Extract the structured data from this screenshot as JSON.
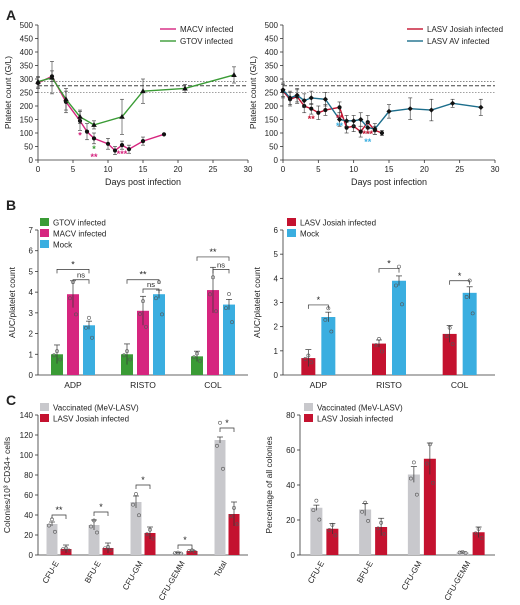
{
  "panel_letters": [
    "A",
    "B",
    "C"
  ],
  "colors": {
    "macv": "#d6257f",
    "gtov": "#3a9b35",
    "lasv_josiah": "#c4122f",
    "lasv_av": "#1c6e8c",
    "mock": "#3aaee0",
    "vaccinated": "#c8c8cc",
    "sig_red": "#d6257f",
    "sig_blue": "#3aaee0"
  },
  "chart_data": [
    {
      "id": "A1",
      "type": "line",
      "xlabel": "Days post infection",
      "ylabel": "Platelet count (G/L)",
      "xlim": [
        0,
        30
      ],
      "ylim": [
        0,
        500
      ],
      "xticks": [
        0,
        5,
        10,
        15,
        20,
        25,
        30
      ],
      "yticks": [
        0,
        50,
        100,
        150,
        200,
        250,
        300,
        350,
        400,
        450,
        500
      ],
      "reference_lines": [
        250,
        275,
        290
      ],
      "legend": "top-right",
      "series": [
        {
          "name": "MACV infected",
          "color": "#d6257f",
          "marker": "circle",
          "x": [
            0,
            2,
            4,
            6,
            7,
            8,
            10,
            11,
            12,
            13,
            15,
            18
          ],
          "y": [
            285,
            310,
            215,
            145,
            105,
            80,
            60,
            35,
            55,
            40,
            70,
            95
          ],
          "err": [
            20,
            20,
            40,
            35,
            30,
            20,
            20,
            15,
            15,
            15,
            15,
            0
          ]
        },
        {
          "name": "GTOV infected",
          "color": "#3a9b35",
          "marker": "triangle",
          "x": [
            0,
            2,
            4,
            6,
            8,
            12,
            15,
            21,
            28
          ],
          "y": [
            290,
            305,
            225,
            160,
            130,
            160,
            255,
            265,
            315
          ],
          "err": [
            20,
            60,
            40,
            25,
            15,
            65,
            45,
            15,
            30
          ]
        }
      ],
      "annotations": [
        {
          "x": 6,
          "text": "*",
          "color": "#d6257f"
        },
        {
          "x": 8,
          "text": "*",
          "color": "#3a9b35"
        },
        {
          "x": 8,
          "text": "**",
          "color": "#d6257f"
        },
        {
          "x": 12,
          "text": "***",
          "color": "#d6257f"
        }
      ]
    },
    {
      "id": "A2",
      "type": "line",
      "xlabel": "Days post infection",
      "ylabel": "Platelet count (G/L)",
      "xlim": [
        0,
        30
      ],
      "ylim": [
        0,
        500
      ],
      "xticks": [
        0,
        5,
        10,
        15,
        20,
        25,
        30
      ],
      "yticks": [
        0,
        50,
        100,
        150,
        200,
        250,
        300,
        350,
        400,
        450,
        500
      ],
      "reference_lines": [
        250,
        275,
        290
      ],
      "legend": "top-right",
      "series": [
        {
          "name": "LASV Josiah infected",
          "color": "#c4122f",
          "marker": "circle",
          "x": [
            0,
            1,
            2,
            3,
            4,
            5,
            6,
            8,
            9,
            10,
            11,
            12,
            13,
            14
          ],
          "y": [
            255,
            225,
            235,
            200,
            190,
            175,
            185,
            195,
            120,
            125,
            105,
            140,
            110,
            100
          ],
          "err": [
            25,
            25,
            25,
            25,
            20,
            25,
            20,
            20,
            20,
            20,
            20,
            25,
            15,
            10
          ]
        },
        {
          "name": "LASV AV infected",
          "color": "#1c6e8c",
          "marker": "diamond",
          "x": [
            0,
            1,
            2,
            3,
            4,
            6,
            8,
            9,
            10,
            11,
            12,
            13,
            15,
            18,
            21,
            24,
            28
          ],
          "y": [
            260,
            230,
            240,
            220,
            230,
            225,
            150,
            145,
            145,
            150,
            120,
            115,
            180,
            190,
            185,
            210,
            195
          ],
          "err": [
            25,
            25,
            25,
            25,
            25,
            25,
            25,
            20,
            20,
            25,
            20,
            20,
            25,
            40,
            40,
            15,
            30
          ]
        }
      ],
      "annotations": [
        {
          "x": 4,
          "text": "**",
          "color": "#c4122f"
        },
        {
          "x": 8,
          "text": "**",
          "color": "#c4122f"
        },
        {
          "x": 8,
          "text": "**",
          "color": "#3aaee0"
        },
        {
          "x": 12,
          "text": "***",
          "color": "#c4122f"
        },
        {
          "x": 12,
          "text": "**",
          "color": "#3aaee0"
        }
      ]
    },
    {
      "id": "B1",
      "type": "bar",
      "ylabel": "AUC/platelet count",
      "ylim": [
        0,
        7
      ],
      "yticks": [
        0,
        1,
        2,
        3,
        4,
        5,
        6,
        7
      ],
      "categories": [
        "ADP",
        "RISTO",
        "COL"
      ],
      "legend": "top-left",
      "series": [
        {
          "name": "GTOV infected",
          "color": "#3a9b35",
          "values": [
            1.0,
            1.0,
            0.9
          ],
          "err": [
            0.45,
            0.5,
            0.25
          ]
        },
        {
          "name": "MACV infected",
          "color": "#d6257f",
          "values": [
            3.9,
            3.1,
            4.1
          ],
          "err": [
            0.65,
            0.7,
            1.1
          ]
        },
        {
          "name": "Mock",
          "color": "#3aaee0",
          "values": [
            2.4,
            3.9,
            3.4
          ],
          "err": [
            0.2,
            0.2,
            0.25
          ]
        }
      ],
      "significance": [
        {
          "cat": 0,
          "from": 0,
          "to": 2,
          "y": 5.1,
          "text": "*"
        },
        {
          "cat": 0,
          "from": 1,
          "to": 2,
          "y": 4.6,
          "text": "ns"
        },
        {
          "cat": 1,
          "from": 0,
          "to": 2,
          "y": 4.6,
          "text": "**"
        },
        {
          "cat": 1,
          "from": 1,
          "to": 2,
          "y": 4.15,
          "text": "ns"
        },
        {
          "cat": 2,
          "from": 0,
          "to": 2,
          "y": 5.7,
          "text": "**"
        },
        {
          "cat": 2,
          "from": 1,
          "to": 2,
          "y": 5.1,
          "text": "ns"
        }
      ]
    },
    {
      "id": "B2",
      "type": "bar",
      "ylabel": "AUC/platelet count",
      "ylim": [
        0,
        6
      ],
      "yticks": [
        0,
        1,
        2,
        3,
        4,
        5,
        6
      ],
      "categories": [
        "ADP",
        "RISTO",
        "COL"
      ],
      "legend": "top-left",
      "series": [
        {
          "name": "LASV Josiah infected",
          "color": "#c4122f",
          "values": [
            0.7,
            1.3,
            1.7
          ],
          "err": [
            0.35,
            0.15,
            0.35
          ]
        },
        {
          "name": "Mock",
          "color": "#3aaee0",
          "values": [
            2.4,
            3.9,
            3.4
          ],
          "err": [
            0.2,
            0.2,
            0.25
          ]
        }
      ],
      "significance": [
        {
          "cat": 0,
          "from": 0,
          "to": 1,
          "y": 2.9,
          "text": "*"
        },
        {
          "cat": 1,
          "from": 0,
          "to": 1,
          "y": 4.4,
          "text": "*"
        },
        {
          "cat": 2,
          "from": 0,
          "to": 1,
          "y": 3.9,
          "text": "*"
        }
      ]
    },
    {
      "id": "C1",
      "type": "bar",
      "ylabel": "Colonies/10³ CD34+ cells",
      "ylim": [
        0,
        140
      ],
      "yticks": [
        0,
        20,
        40,
        60,
        80,
        100,
        120,
        140
      ],
      "categories": [
        "CFU-E",
        "BFU-E",
        "CFU-GM",
        "CFU-GEMM",
        "Total"
      ],
      "legend": "top-left",
      "series": [
        {
          "name": "Vaccinated (MeV-LASV)",
          "color": "#c8c8cc",
          "values": [
            31,
            30,
            53,
            2,
            115
          ],
          "err": [
            2,
            5,
            6,
            0.5,
            3
          ]
        },
        {
          "name": "LASV Josiah infected",
          "color": "#c4122f",
          "values": [
            6,
            7,
            22,
            4,
            41
          ],
          "err": [
            4,
            5,
            6,
            1,
            12
          ]
        }
      ],
      "significance": [
        {
          "cat": 0,
          "from": 0,
          "to": 1,
          "y": 40,
          "text": "**"
        },
        {
          "cat": 1,
          "from": 0,
          "to": 1,
          "y": 43,
          "text": "*"
        },
        {
          "cat": 2,
          "from": 0,
          "to": 1,
          "y": 70,
          "text": "*"
        },
        {
          "cat": 3,
          "from": 0,
          "to": 1,
          "y": 10,
          "text": "*"
        },
        {
          "cat": 4,
          "from": 0,
          "to": 1,
          "y": 127,
          "text": "*"
        }
      ]
    },
    {
      "id": "C2",
      "type": "bar",
      "ylabel": "Percentage of all colonies",
      "ylim": [
        0,
        80
      ],
      "yticks": [
        0,
        20,
        40,
        60,
        80
      ],
      "categories": [
        "CFU-E",
        "BFU-E",
        "CFU-GM",
        "CFU-GEMM"
      ],
      "legend": "top-left",
      "series": [
        {
          "name": "Vaccinated (MeV-LASV)",
          "color": "#c8c8cc",
          "values": [
            27,
            26,
            46,
            1.5
          ],
          "err": [
            1.5,
            3.5,
            4.5,
            0.3
          ]
        },
        {
          "name": "LASV Josiah infected",
          "color": "#c4122f",
          "values": [
            15,
            16,
            55,
            13
          ],
          "err": [
            3,
            5,
            9,
            3
          ]
        }
      ],
      "significance": []
    }
  ]
}
